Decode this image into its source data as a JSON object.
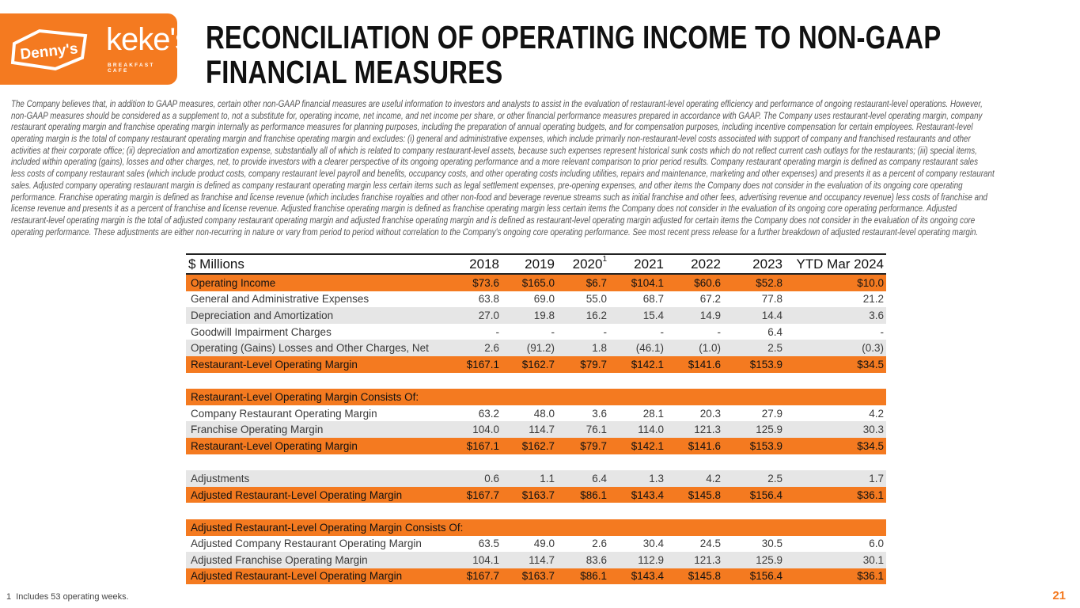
{
  "logos": {
    "dennys": "Denny's",
    "kekes": "keke's",
    "kekes_sub": "BREAKFAST CAFE"
  },
  "title_lines": [
    "RECONCILIATION OF OPERATING INCOME TO NON-GAAP",
    "FINANCIAL MEASURES"
  ],
  "paragraph_lines": [
    "The Company believes that, in addition to GAAP measures, certain other non-GAAP financial measures are useful information to investors and analysts to assist in the evaluation of restaurant-level operating efficiency and performance of ongoing restaurant-level operations. However,",
    "non-GAAP measures should be considered as a supplement to, not a substitute for, operating income, net income, and net income per share, or other financial performance measures prepared in accordance with GAAP. The Company uses restaurant-level operating margin, company",
    "restaurant operating margin and franchise operating margin internally as performance measures for planning purposes, including the preparation of annual operating budgets, and for compensation purposes, including incentive compensation for certain employees. Restaurant-level",
    "operating margin is the total of company restaurant operating margin and franchise operating margin and excludes: (i) general and administrative expenses, which include primarily non-restaurant-level costs associated with support of company and franchised restaurants and other",
    "activities at their corporate office; (ii) depreciation and amortization expense, substantially all of which is related to company restaurant-level assets, because such expenses represent historical sunk costs which do not reflect current cash outlays for the restaurants; (iii) special items,",
    "included within operating (gains), losses and other charges, net, to provide investors with a clearer perspective of its ongoing operating performance and a more relevant comparison to prior period results. Company restaurant operating margin is defined as company restaurant sales",
    "less costs of company restaurant sales (which include product costs, company restaurant level payroll and benefits, occupancy costs, and other operating costs including utilities, repairs and maintenance, marketing and other expenses) and presents it as a percent of company restaurant",
    "sales. Adjusted company operating restaurant margin is defined as company restaurant operating margin less certain items such as legal settlement expenses, pre-opening expenses, and other items the Company does not consider in the evaluation of its ongoing core operating",
    "performance. Franchise operating margin is defined as franchise and license revenue (which includes franchise royalties and other non-food and beverage revenue streams such as initial franchise and other fees, advertising revenue and occupancy revenue) less costs of franchise and",
    "license revenue and presents it as a percent of franchise and license revenue. Adjusted franchise operating margin is defined as franchise operating margin less certain items the Company does not consider in the evaluation of its ongoing core operating performance. Adjusted",
    "restaurant-level operating margin is the total of adjusted company restaurant operating margin and adjusted franchise operating margin and is defined as restaurant-level operating margin adjusted for certain items the Company does not consider in the evaluation of its ongoing core",
    "operating performance. These adjustments are either non-recurring in nature or vary from period to period without correlation to the Company's ongoing core operating performance. See most recent press release for a further breakdown of adjusted restaurant-level operating margin."
  ],
  "table": {
    "header": {
      "label": "$ Millions",
      "columns": [
        "2018",
        "2019",
        "2020",
        "2021",
        "2022",
        "2023",
        "YTD Mar 2024"
      ],
      "footnote_marker_col": 2,
      "footnote_marker": "1"
    },
    "rows": [
      {
        "style": "orange",
        "label": "Operating Income",
        "values": [
          "$73.6",
          "$165.0",
          "$6.7",
          "$104.1",
          "$60.6",
          "$52.8",
          "$10.0"
        ]
      },
      {
        "style": "white",
        "label": "General and Administrative Expenses",
        "values": [
          "63.8",
          "69.0",
          "55.0",
          "68.7",
          "67.2",
          "77.8",
          "21.2"
        ]
      },
      {
        "style": "gray",
        "label": "Depreciation and Amortization",
        "values": [
          "27.0",
          "19.8",
          "16.2",
          "15.4",
          "14.9",
          "14.4",
          "3.6"
        ]
      },
      {
        "style": "white",
        "label": "Goodwill Impairment Charges",
        "values": [
          "-",
          "-",
          "-",
          "-",
          "-",
          "6.4",
          "-"
        ]
      },
      {
        "style": "gray",
        "label": "Operating (Gains) Losses and Other Charges, Net",
        "values": [
          "2.6",
          "(91.2)",
          "1.8",
          "(46.1)",
          "(1.0)",
          "2.5",
          "(0.3)"
        ]
      },
      {
        "style": "orange",
        "label": "Restaurant-Level Operating Margin",
        "values": [
          "$167.1",
          "$162.7",
          "$79.7",
          "$142.1",
          "$141.6",
          "$153.9",
          "$34.5"
        ]
      },
      {
        "style": "blank",
        "label": "",
        "values": []
      },
      {
        "style": "orange",
        "label": "Restaurant-Level Operating Margin Consists Of:",
        "values": []
      },
      {
        "style": "white",
        "label": "Company Restaurant Operating Margin",
        "values": [
          "63.2",
          "48.0",
          "3.6",
          "28.1",
          "20.3",
          "27.9",
          "4.2"
        ]
      },
      {
        "style": "gray",
        "label": "Franchise Operating Margin",
        "values": [
          "104.0",
          "114.7",
          "76.1",
          "114.0",
          "121.3",
          "125.9",
          "30.3"
        ]
      },
      {
        "style": "orange",
        "label": "Restaurant-Level Operating Margin",
        "values": [
          "$167.1",
          "$162.7",
          "$79.7",
          "$142.1",
          "$141.6",
          "$153.9",
          "$34.5"
        ]
      },
      {
        "style": "blank",
        "label": "",
        "values": []
      },
      {
        "style": "gray",
        "label": "Adjustments",
        "values": [
          "0.6",
          "1.1",
          "6.4",
          "1.3",
          "4.2",
          "2.5",
          "1.7"
        ]
      },
      {
        "style": "orange",
        "label": "Adjusted Restaurant-Level Operating Margin",
        "values": [
          "$167.7",
          "$163.7",
          "$86.1",
          "$143.4",
          "$145.8",
          "$156.4",
          "$36.1"
        ]
      },
      {
        "style": "blank",
        "label": "",
        "values": []
      },
      {
        "style": "orange",
        "label": "Adjusted Restaurant-Level Operating Margin Consists Of:",
        "values": []
      },
      {
        "style": "white",
        "label": "Adjusted Company Restaurant Operating Margin",
        "values": [
          "63.5",
          "49.0",
          "2.6",
          "30.4",
          "24.5",
          "30.5",
          "6.0"
        ]
      },
      {
        "style": "gray",
        "label": "Adjusted Franchise Operating Margin",
        "values": [
          "104.1",
          "114.7",
          "83.6",
          "112.9",
          "121.3",
          "125.9",
          "30.1"
        ]
      },
      {
        "style": "orange",
        "label": "Adjusted Restaurant-Level Operating Margin",
        "values": [
          "$167.7",
          "$163.7",
          "$86.1",
          "$143.4",
          "$145.8",
          "$156.4",
          "$36.1"
        ]
      }
    ]
  },
  "footnote": {
    "marker": "1",
    "text": "Includes 53 operating weeks."
  },
  "page_number": "21",
  "colors": {
    "accent": "#f47a20",
    "stripe": "#e6e6e6"
  }
}
